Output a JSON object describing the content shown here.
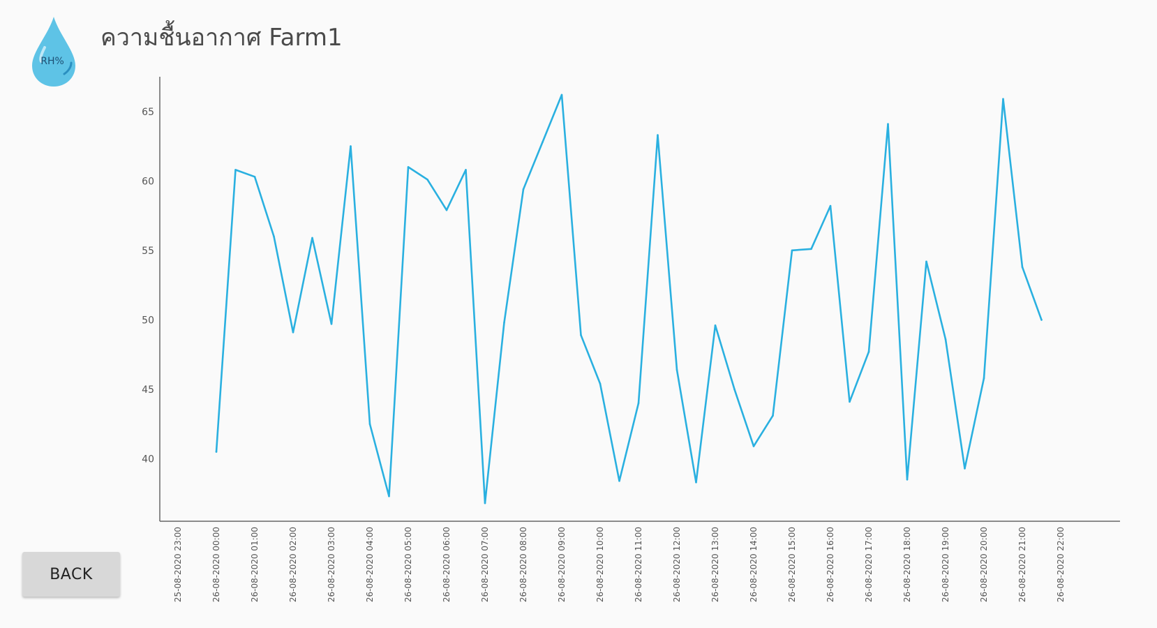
{
  "header": {
    "title": "ความชื้นอากาศ Farm1",
    "logo_text": "RH%",
    "logo_icon": "water-drop-icon"
  },
  "actions": {
    "back_label": "BACK"
  },
  "colors": {
    "line": "#2ab0e0",
    "axis": "#666666",
    "drop_fill": "#5ec3e6"
  },
  "chart_data": {
    "type": "line",
    "title": "",
    "xlabel": "",
    "ylabel": "",
    "ylim": [
      35.5,
      67.5
    ],
    "yticks": [
      40,
      45,
      50,
      55,
      60,
      65
    ],
    "grid": false,
    "legend": "none",
    "xticks": [
      "25-08-2020 23:00",
      "26-08-2020 00:00",
      "26-08-2020 01:00",
      "26-08-2020 02:00",
      "26-08-2020 03:00",
      "26-08-2020 04:00",
      "26-08-2020 05:00",
      "26-08-2020 06:00",
      "26-08-2020 07:00",
      "26-08-2020 08:00",
      "26-08-2020 09:00",
      "26-08-2020 10:00",
      "26-08-2020 11:00",
      "26-08-2020 12:00",
      "26-08-2020 13:00",
      "26-08-2020 14:00",
      "26-08-2020 15:00",
      "26-08-2020 16:00",
      "26-08-2020 17:00",
      "26-08-2020 18:00",
      "26-08-2020 19:00",
      "26-08-2020 20:00",
      "26-08-2020 21:00",
      "26-08-2020 22:00"
    ],
    "series": [
      {
        "x": [
          "26-08-2020 00:00",
          "26-08-2020 00:30",
          "26-08-2020 01:00",
          "26-08-2020 01:30",
          "26-08-2020 02:00",
          "26-08-2020 02:30",
          "26-08-2020 03:00",
          "26-08-2020 03:30",
          "26-08-2020 04:00",
          "26-08-2020 04:30",
          "26-08-2020 05:00",
          "26-08-2020 05:30",
          "26-08-2020 06:00",
          "26-08-2020 06:30",
          "26-08-2020 07:00",
          "26-08-2020 07:30",
          "26-08-2020 08:00",
          "26-08-2020 08:30",
          "26-08-2020 09:00",
          "26-08-2020 09:30",
          "26-08-2020 10:00",
          "26-08-2020 10:30",
          "26-08-2020 11:00",
          "26-08-2020 11:30",
          "26-08-2020 12:00",
          "26-08-2020 12:30",
          "26-08-2020 13:00",
          "26-08-2020 13:30",
          "26-08-2020 14:00",
          "26-08-2020 14:30",
          "26-08-2020 15:00",
          "26-08-2020 15:30",
          "26-08-2020 16:00",
          "26-08-2020 16:30",
          "26-08-2020 17:00",
          "26-08-2020 17:30",
          "26-08-2020 18:00",
          "26-08-2020 18:30",
          "26-08-2020 19:00",
          "26-08-2020 19:30",
          "26-08-2020 20:00",
          "26-08-2020 20:30",
          "26-08-2020 21:00",
          "26-08-2020 21:30"
        ],
        "values": [
          40.5,
          60.8,
          60.3,
          56.0,
          49.1,
          55.9,
          49.7,
          62.5,
          42.5,
          37.3,
          61.0,
          60.1,
          57.9,
          60.8,
          36.8,
          49.8,
          59.4,
          62.8,
          66.2,
          48.9,
          45.4,
          38.4,
          44.0,
          63.3,
          46.4,
          38.3,
          49.6,
          45.0,
          40.9,
          43.1,
          55.0,
          55.1,
          58.2,
          44.1,
          47.7,
          64.1,
          38.5,
          54.2,
          48.6,
          39.3,
          45.8,
          65.9,
          53.8,
          50.0
        ]
      }
    ]
  }
}
